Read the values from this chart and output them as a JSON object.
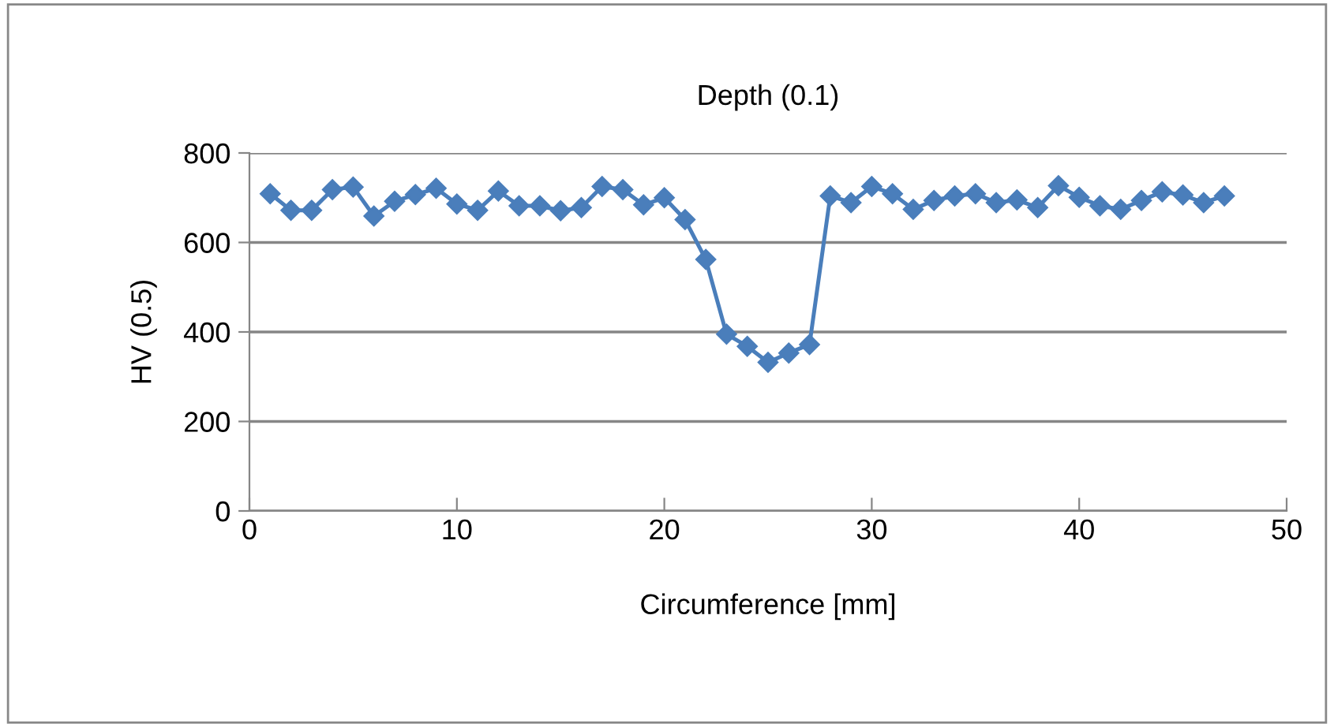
{
  "chart_data": {
    "type": "line",
    "title": "Depth (0.1)",
    "xlabel": "Circumference [mm]",
    "ylabel": "HV (0.5)",
    "x": [
      1,
      2,
      3,
      4,
      5,
      6,
      7,
      8,
      9,
      10,
      11,
      12,
      13,
      14,
      15,
      16,
      17,
      18,
      19,
      20,
      21,
      22,
      23,
      24,
      25,
      26,
      27,
      28,
      29,
      30,
      31,
      32,
      33,
      34,
      35,
      36,
      37,
      38,
      39,
      40,
      41,
      42,
      43,
      44,
      45,
      46,
      47
    ],
    "series": [
      {
        "color": "#4a7ebb",
        "values": [
          709,
          672,
          672,
          718,
          724,
          659,
          692,
          707,
          721,
          686,
          672,
          715,
          682,
          682,
          671,
          678,
          725,
          718,
          684,
          700,
          651,
          562,
          395,
          368,
          332,
          353,
          372,
          704,
          689,
          725,
          709,
          674,
          694,
          704,
          709,
          689,
          695,
          678,
          727,
          701,
          682,
          674,
          694,
          713,
          706,
          689,
          704
        ]
      }
    ],
    "xlim": [
      0,
      50
    ],
    "xticks": [
      0,
      10,
      20,
      30,
      40,
      50
    ],
    "ylim": [
      0,
      800
    ],
    "yticks": [
      0,
      200,
      400,
      600,
      800
    ],
    "grid": "y",
    "marker": "diamond",
    "line_style": "solid",
    "legend": false
  }
}
